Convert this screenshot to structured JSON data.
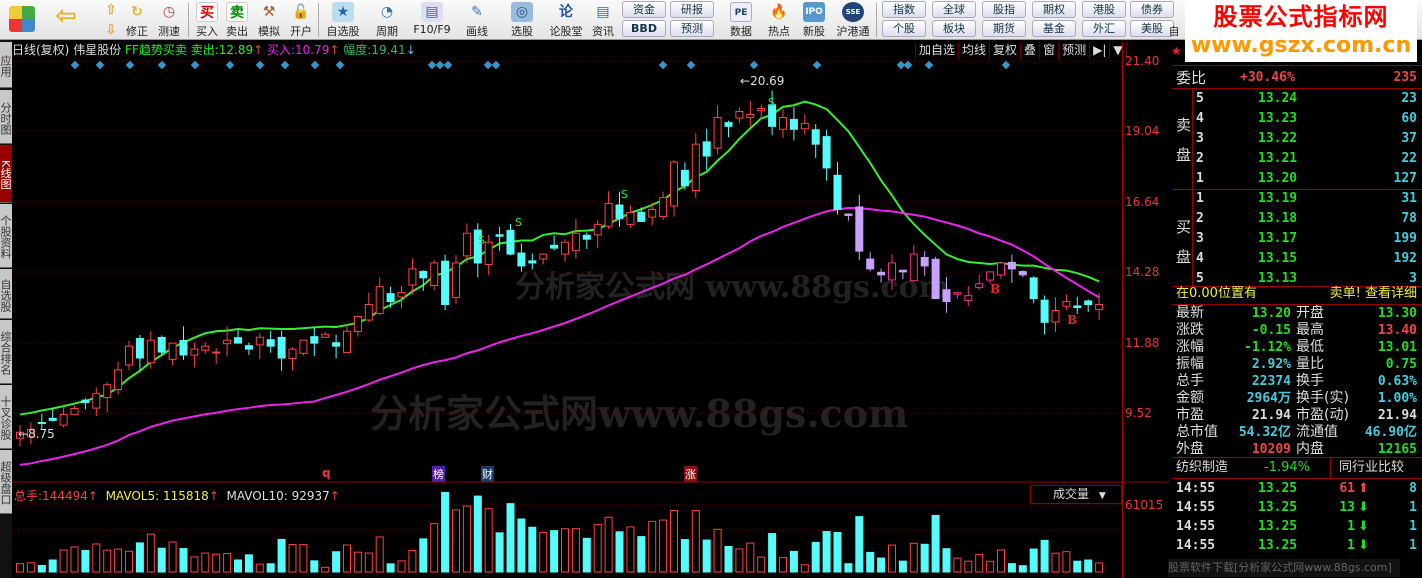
{
  "toolbar": {
    "items": [
      "修正",
      "测速",
      "买入",
      "卖出",
      "模拟",
      "开户",
      "自选股",
      "周期",
      "F10/F9",
      "画线",
      "选股",
      "论股堂",
      "资讯",
      "数据",
      "热点",
      "新股",
      "沪港通"
    ],
    "small_buttons": [
      "资金",
      "BBD",
      "研报",
      "预测",
      "指数",
      "全球",
      "股指",
      "期权",
      "港股",
      "债券",
      "个股",
      "板块",
      "期货",
      "基金",
      "外汇",
      "美股"
    ],
    "last_label": "自"
  },
  "logo": {
    "line1": "股票公式指标网",
    "line2": "www.gszx.com.cn"
  },
  "sidebar": {
    "tabs": [
      "应用",
      "分时图",
      "K线图",
      "个股资料",
      "自选股",
      "综合排名",
      "十叉诊股",
      "超级盘口"
    ],
    "active": "K线图"
  },
  "chart_header": {
    "period": "日线(复权)",
    "stock": "伟星股份",
    "indicator": "FF趋势买卖",
    "sell_label": "卖出:",
    "sell": "12.89",
    "buy_label": "买入:",
    "buy": "10.79",
    "range_label": "幅度:",
    "range": "19.41",
    "buttons": [
      "加自选",
      "均线",
      "复权",
      "叠",
      "窗",
      "预测",
      "▶|",
      "▼"
    ]
  },
  "chart_data": {
    "type": "candlestick",
    "price_ticks": [
      "21.40",
      "19.04",
      "16.64",
      "14.28",
      "11.88",
      "9.52"
    ],
    "closes": [
      8.9,
      9.0,
      9.2,
      9.3,
      9.5,
      9.7,
      9.9,
      10.2,
      10.5,
      11.0,
      11.8,
      11.4,
      12.0,
      11.6,
      11.9,
      11.5,
      11.7,
      11.8,
      11.6,
      12.0,
      11.9,
      11.7,
      12.1,
      11.8,
      11.4,
      11.7,
      12.0,
      11.9,
      12.2,
      11.8,
      12.3,
      12.8,
      13.2,
      13.8,
      13.3,
      13.6,
      14.4,
      14.1,
      14.6,
      13.2,
      14.6,
      15.6,
      14.6,
      15.3,
      15.5,
      14.9,
      14.5,
      14.6,
      14.9,
      15.1,
      15.3,
      15.6,
      15.4,
      15.9,
      16.6,
      16.1,
      16.3,
      16.0,
      16.4,
      16.8,
      18.0,
      17.2,
      18.6,
      18.2,
      19.5,
      19.2,
      19.7,
      19.6,
      19.8,
      19.2,
      19.5,
      19.1,
      19.3,
      18.6,
      17.8,
      16.4,
      16.2,
      15.0,
      14.4,
      14.2,
      14.6,
      14.3,
      14.9,
      14.5,
      13.4,
      13.3,
      13.6,
      13.5,
      13.9,
      14.3,
      14.6,
      14.4,
      14.2,
      13.4,
      12.6,
      13.0,
      13.3,
      13.1,
      13.2,
      13.2
    ],
    "high_label": "20.69",
    "low_label": "8.75",
    "signals": {
      "sell": "S",
      "buy": "B"
    },
    "events": [
      "q",
      "榜",
      "财",
      "涨"
    ],
    "colors": {
      "up": "#ff4040",
      "down": "#54fcfc",
      "trend_upper": "#33ee33",
      "trend_lower": "#ee22ee"
    }
  },
  "volume": {
    "total_label": "总手:",
    "total": "144494",
    "mavol5_label": "MAVOL5:",
    "mavol5": "115818",
    "mavol10_label": "MAVOL10:",
    "mavol10": "92937",
    "selector": "成交量",
    "tick": "61015"
  },
  "watermarks": [
    "分析家公式网 www.88gs.com",
    "分析家公式网www.88gs.com"
  ],
  "quote": {
    "weibi_label": "委比",
    "weibi": "+30.46%",
    "weibi_vol": "235",
    "sell_label": "卖盘",
    "buy_label": "买盘",
    "asks": [
      {
        "n": "5",
        "p": "13.24",
        "v": "23"
      },
      {
        "n": "4",
        "p": "13.23",
        "v": "60"
      },
      {
        "n": "3",
        "p": "13.22",
        "v": "37"
      },
      {
        "n": "2",
        "p": "13.21",
        "v": "22"
      },
      {
        "n": "1",
        "p": "13.20",
        "v": "127"
      }
    ],
    "bids": [
      {
        "n": "1",
        "p": "13.19",
        "v": "31"
      },
      {
        "n": "2",
        "p": "13.18",
        "v": "78"
      },
      {
        "n": "3",
        "p": "13.17",
        "v": "199"
      },
      {
        "n": "4",
        "p": "13.15",
        "v": "192"
      },
      {
        "n": "5",
        "p": "13.13",
        "v": "3"
      }
    ],
    "pos_text": "在0.00位置有",
    "detail_link": "卖单! 查看详细",
    "stats": [
      {
        "l1": "最新",
        "v1": "13.20",
        "c1": "g",
        "l2": "开盘",
        "v2": "13.30",
        "c2": "g"
      },
      {
        "l1": "涨跌",
        "v1": "-0.15",
        "c1": "g",
        "l2": "最高",
        "v2": "13.40",
        "c2": "r"
      },
      {
        "l1": "涨幅",
        "v1": "-1.12%",
        "c1": "g",
        "l2": "最低",
        "v2": "13.01",
        "c2": "g"
      },
      {
        "l1": "振幅",
        "v1": "2.92%",
        "c1": "c",
        "l2": "量比",
        "v2": "0.75",
        "c2": "g"
      },
      {
        "l1": "总手",
        "v1": "22374",
        "c1": "c",
        "l2": "换手",
        "v2": "0.63%",
        "c2": "c"
      },
      {
        "l1": "金额",
        "v1": "2964万",
        "c1": "c",
        "l2": "换手(实)",
        "v2": "1.00%",
        "c2": "c"
      },
      {
        "l1": "市盈",
        "v1": "21.94",
        "c1": "w",
        "l2": "市盈(动)",
        "v2": "21.94",
        "c2": "w"
      },
      {
        "l1": "总市值",
        "v1": "54.32亿",
        "c1": "c",
        "l2": "流通值",
        "v2": "46.90亿",
        "c2": "c"
      },
      {
        "l1": "外盘",
        "v1": "10209",
        "c1": "r",
        "l2": "内盘",
        "v2": "12165",
        "c2": "g"
      }
    ],
    "industry": "纺织制造",
    "industry_change": "-1.94%",
    "compare_button": "同行业比较",
    "ticks": [
      {
        "t": "14:55",
        "p": "13.25",
        "v": "61",
        "dir": "up",
        "n": "8"
      },
      {
        "t": "14:55",
        "p": "13.25",
        "v": "13",
        "dir": "down",
        "n": "1"
      },
      {
        "t": "14:55",
        "p": "13.25",
        "v": "1",
        "dir": "down",
        "n": "1"
      },
      {
        "t": "14:55",
        "p": "13.25",
        "v": "1",
        "dir": "down",
        "n": "1"
      }
    ],
    "overlay": "股票软件下载[分析家公式网www.88gs.com]"
  }
}
